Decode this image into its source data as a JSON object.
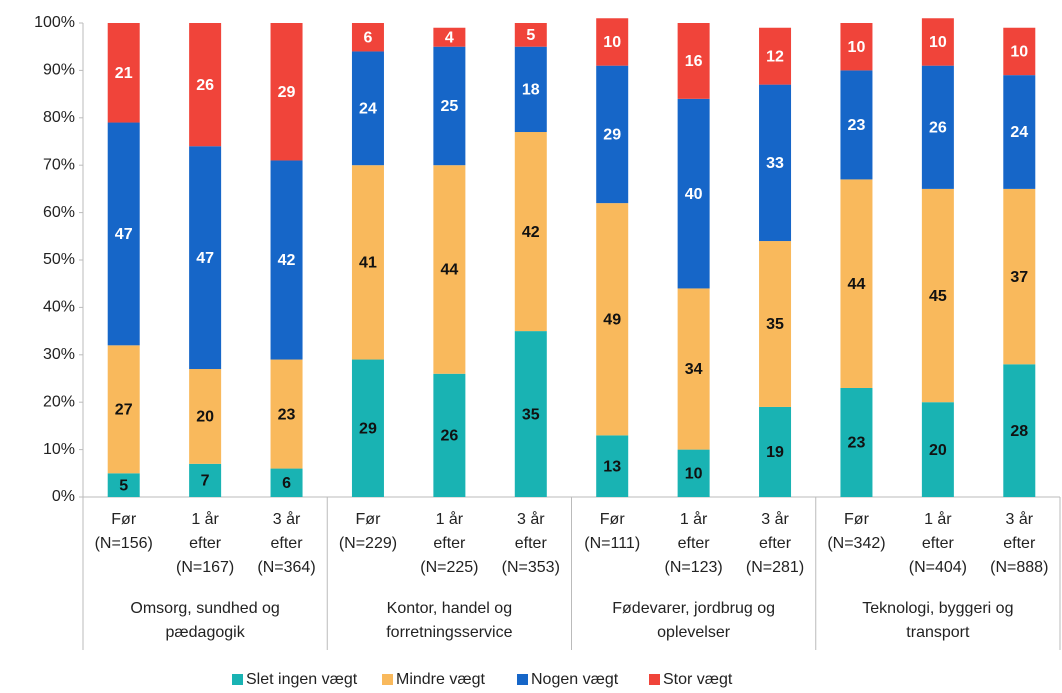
{
  "chart_data": {
    "type": "stacked_bar",
    "categories": [
      "Før\n(N=156)",
      "1 år\nefter\n(N=167)",
      "3 år\nefter\n(N=364)",
      "Før\n(N=229)",
      "1 år\nefter\n(N=225)",
      "3 år\nefter\n(N=353)",
      "Før\n(N=111)",
      "1 år\nefter\n(N=123)",
      "3 år\nefter\n(N=281)",
      "Før\n(N=342)",
      "1 år\nefter\n(N=404)",
      "3 år\nefter\n(N=888)"
    ],
    "groups": [
      "Omsorg, sundhed og\npædagogik",
      "Kontor, handel og\nforretningsservice",
      "Fødevarer, jordbrug og\noplevelser",
      "Teknologi, byggeri og\ntransport"
    ],
    "series": [
      {
        "name": "Slet ingen vægt",
        "color": "#19B3B3",
        "values": [
          5,
          7,
          6,
          29,
          26,
          35,
          13,
          10,
          19,
          23,
          20,
          28
        ]
      },
      {
        "name": "Mindre vægt",
        "color": "#F9B95C",
        "values": [
          27,
          20,
          23,
          41,
          44,
          42,
          49,
          34,
          35,
          44,
          45,
          37
        ]
      },
      {
        "name": "Nogen vægt",
        "color": "#1666C8",
        "values": [
          47,
          47,
          42,
          24,
          25,
          18,
          29,
          40,
          33,
          23,
          26,
          24
        ]
      },
      {
        "name": "Stor vægt",
        "color": "#F0443A",
        "values": [
          21,
          26,
          29,
          6,
          4,
          5,
          10,
          16,
          12,
          10,
          10,
          10
        ]
      }
    ],
    "ylim": [
      0,
      100
    ],
    "yticks": [
      {
        "value": 0,
        "label": "0%"
      },
      {
        "value": 10,
        "label": "10%"
      },
      {
        "value": 20,
        "label": "20%"
      },
      {
        "value": 30,
        "label": "30%"
      },
      {
        "value": 40,
        "label": "40%"
      },
      {
        "value": 50,
        "label": "50%"
      },
      {
        "value": 60,
        "label": "60%"
      },
      {
        "value": 70,
        "label": "70%"
      },
      {
        "value": 80,
        "label": "80%"
      },
      {
        "value": 90,
        "label": "90%"
      },
      {
        "value": 100,
        "label": "100%"
      }
    ],
    "legend": "bottom"
  }
}
